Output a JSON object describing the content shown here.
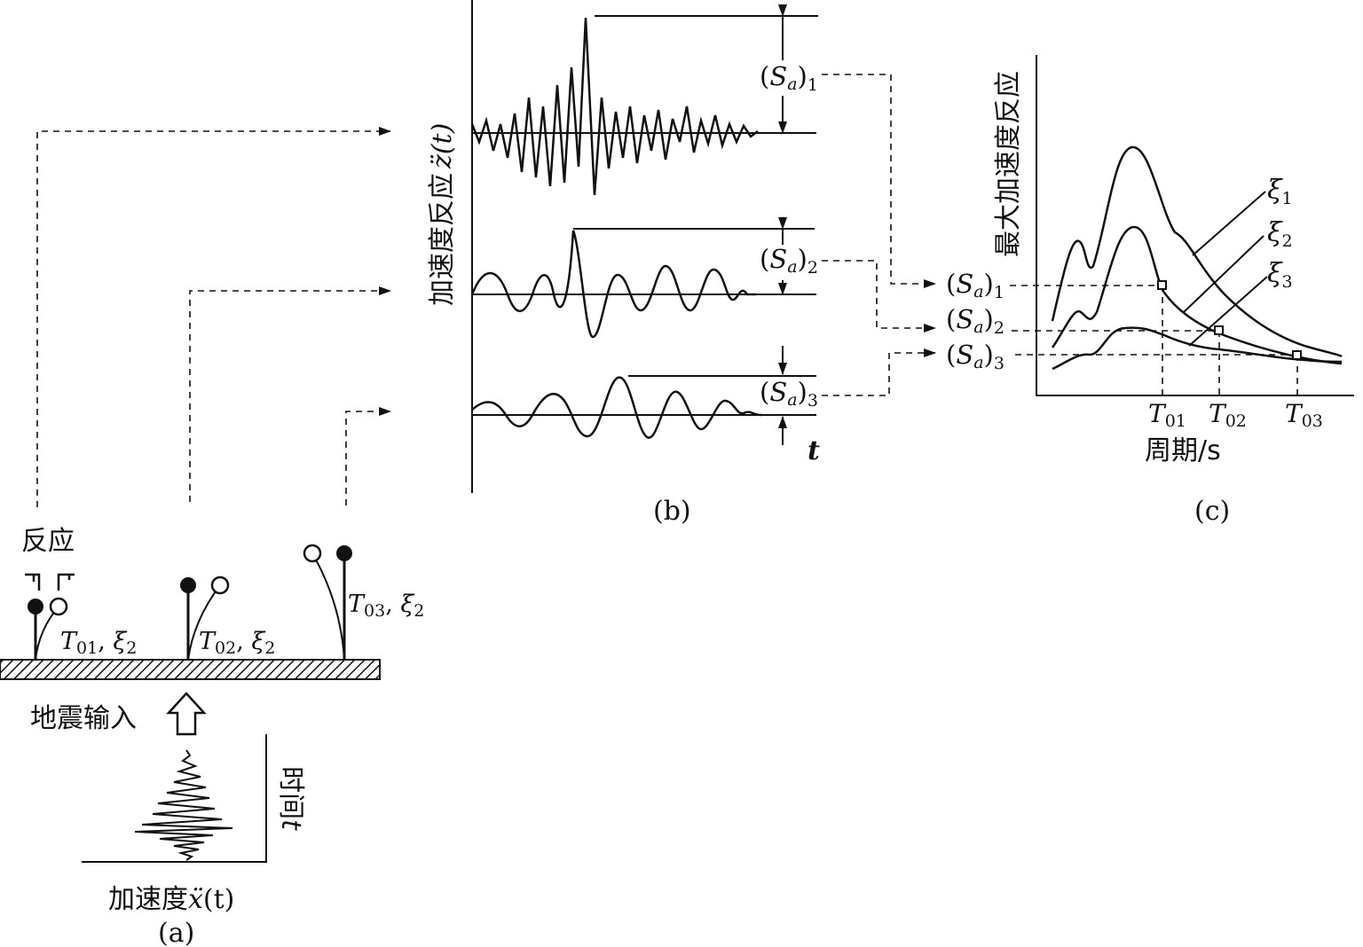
{
  "panel_a": {
    "response_label": "反应",
    "oscillators": [
      {
        "T": "T",
        "T_sub": "01",
        "xi": "ξ",
        "xi_sub": "2"
      },
      {
        "T": "T",
        "T_sub": "02",
        "xi": "ξ",
        "xi_sub": "2"
      },
      {
        "T": "T",
        "T_sub": "03",
        "xi": "ξ",
        "xi_sub": "2"
      }
    ],
    "input_label": "地震输入",
    "time_axis_label": "时间",
    "time_axis_var": "t",
    "accel_label": "加速度",
    "accel_var": "ẍ",
    "accel_arg": "(t)",
    "caption": "(a)"
  },
  "panel_b": {
    "yaxis_label": "加速度反应",
    "yaxis_var": "z̈(t)",
    "time_var": "t",
    "peaks": [
      {
        "S": "S",
        "a": "a",
        "sub": "1"
      },
      {
        "S": "S",
        "a": "a",
        "sub": "2"
      },
      {
        "S": "S",
        "a": "a",
        "sub": "3"
      }
    ],
    "caption": "(b)"
  },
  "panel_c": {
    "yaxis_label": "最大加速度反应",
    "xaxis_label": "周期/s",
    "sa_labels": [
      {
        "S": "S",
        "a": "a",
        "sub": "1"
      },
      {
        "S": "S",
        "a": "a",
        "sub": "2"
      },
      {
        "S": "S",
        "a": "a",
        "sub": "3"
      }
    ],
    "periods": [
      {
        "T": "T",
        "sub": "01"
      },
      {
        "T": "T",
        "sub": "02"
      },
      {
        "T": "T",
        "sub": "03"
      }
    ],
    "damping": [
      {
        "xi": "ξ",
        "sub": "1"
      },
      {
        "xi": "ξ",
        "sub": "2"
      },
      {
        "xi": "ξ",
        "sub": "3"
      }
    ],
    "caption": "(c)"
  }
}
